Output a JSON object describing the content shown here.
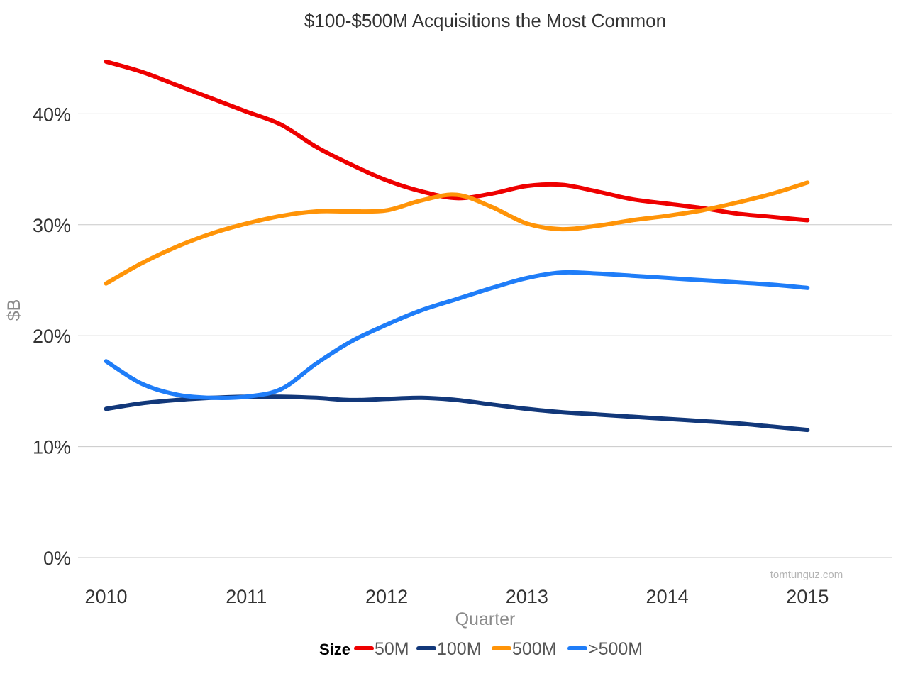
{
  "chart_data": {
    "type": "line",
    "title": "$100-$500M Acquisitions the Most Common",
    "xlabel": "Quarter",
    "ylabel": "$B",
    "x": [
      2010,
      2010.25,
      2010.5,
      2010.75,
      2011,
      2011.25,
      2011.5,
      2011.75,
      2012,
      2012.25,
      2012.5,
      2012.75,
      2013,
      2013.25,
      2013.5,
      2013.75,
      2014,
      2014.25,
      2014.5,
      2014.75,
      2015
    ],
    "x_ticks": [
      "2010",
      "2011",
      "2012",
      "2013",
      "2014",
      "2015"
    ],
    "xlim": [
      2009.8,
      2015.6
    ],
    "y_ticks": [
      "0%",
      "10%",
      "20%",
      "30%",
      "40%"
    ],
    "ylim": [
      0,
      50
    ],
    "grid": true,
    "legend": {
      "title": "Size",
      "position": "bottom"
    },
    "series": [
      {
        "name": "50M",
        "color": "#ee0000",
        "values": [
          44.7,
          43.8,
          42.6,
          41.4,
          40.2,
          39.0,
          37.0,
          35.4,
          34.0,
          33.0,
          32.4,
          32.8,
          33.5,
          33.6,
          33.0,
          32.3,
          31.9,
          31.5,
          31.0,
          30.7,
          30.4
        ]
      },
      {
        "name": "100M",
        "color": "#12387a",
        "values": [
          13.4,
          13.9,
          14.2,
          14.4,
          14.5,
          14.5,
          14.4,
          14.2,
          14.3,
          14.4,
          14.2,
          13.8,
          13.4,
          13.1,
          12.9,
          12.7,
          12.5,
          12.3,
          12.1,
          11.8,
          11.5
        ]
      },
      {
        "name": "500M",
        "color": "#ff9408",
        "values": [
          24.7,
          26.5,
          28.0,
          29.2,
          30.1,
          30.8,
          31.2,
          31.2,
          31.3,
          32.2,
          32.7,
          31.6,
          30.1,
          29.6,
          29.9,
          30.4,
          30.8,
          31.3,
          32.0,
          32.8,
          33.8
        ]
      },
      {
        "name": ">500M",
        "color": "#1f7df8",
        "values": [
          17.7,
          15.7,
          14.7,
          14.4,
          14.5,
          15.2,
          17.5,
          19.5,
          21.0,
          22.3,
          23.3,
          24.3,
          25.2,
          25.7,
          25.6,
          25.4,
          25.2,
          25.0,
          24.8,
          24.6,
          24.3
        ]
      }
    ],
    "watermark": "tomtunguz.com"
  }
}
